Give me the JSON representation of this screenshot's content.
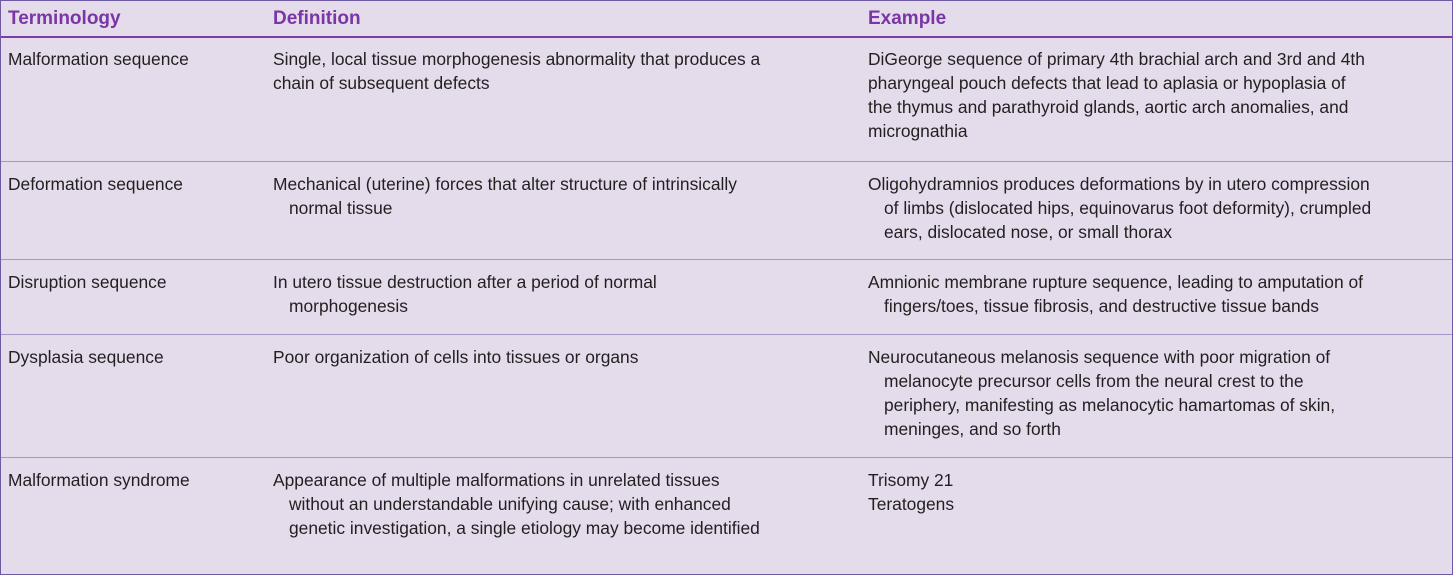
{
  "table": {
    "headers": {
      "terminology": "Terminology",
      "definition": "Definition",
      "example": "Example"
    },
    "rows": [
      {
        "term": "Malformation sequence",
        "definition": [
          "Single, local tissue morphogenesis abnormality that produces a",
          "chain of subsequent defects"
        ],
        "example": [
          "DiGeorge sequence of primary 4th brachial arch and 3rd and 4th",
          "pharyngeal pouch defects that lead to aplasia or hypoplasia of",
          "the thymus and parathyroid glands, aortic arch anomalies, and",
          "micrognathia"
        ]
      },
      {
        "term": "Deformation sequence",
        "definition": [
          "Mechanical (uterine) forces that alter structure of intrinsically",
          "normal tissue"
        ],
        "example": [
          "Oligohydramnios produces deformations by in utero compression",
          "of limbs (dislocated hips, equinovarus foot deformity), crumpled",
          "ears, dislocated nose, or small thorax"
        ]
      },
      {
        "term": "Disruption sequence",
        "definition": [
          "In utero tissue destruction after a period of normal",
          "morphogenesis"
        ],
        "example": [
          "Amnionic membrane rupture sequence, leading to amputation of",
          "fingers/toes, tissue fibrosis, and destructive tissue bands"
        ]
      },
      {
        "term": "Dysplasia sequence",
        "definition": [
          "Poor organization of cells into tissues or organs"
        ],
        "example": [
          "Neurocutaneous melanosis sequence with poor migration of",
          "melanocyte precursor cells from the neural crest to the",
          "periphery, manifesting as melanocytic hamartomas of skin,",
          "meninges, and so forth"
        ]
      },
      {
        "term": "Malformation syndrome",
        "definition": [
          "Appearance of multiple malformations in unrelated tissues",
          "without an understandable unifying cause; with enhanced",
          "genetic investigation, a single etiology may become identified"
        ],
        "example_items": [
          "Trisomy 21",
          "Teratogens"
        ]
      }
    ]
  }
}
